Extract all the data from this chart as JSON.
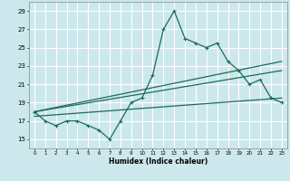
{
  "xlabel": "Humidex (Indice chaleur)",
  "bg_color": "#cce8ec",
  "grid_color": "#ffffff",
  "line_color": "#1a6b5a",
  "xlim": [
    -0.5,
    23.5
  ],
  "ylim": [
    14.0,
    30.0
  ],
  "yticks": [
    15,
    17,
    19,
    21,
    23,
    25,
    27,
    29
  ],
  "xticks": [
    0,
    1,
    2,
    3,
    4,
    5,
    6,
    7,
    8,
    9,
    10,
    11,
    12,
    13,
    14,
    15,
    16,
    17,
    18,
    19,
    20,
    21,
    22,
    23
  ],
  "main_series_x": [
    0,
    1,
    2,
    3,
    4,
    5,
    6,
    7,
    8,
    9,
    10,
    11,
    12,
    13,
    14,
    15,
    16,
    17,
    18,
    19,
    20,
    21,
    22,
    23
  ],
  "main_series_y": [
    18.0,
    17.0,
    16.5,
    17.0,
    17.0,
    16.5,
    16.0,
    15.0,
    17.0,
    19.0,
    19.5,
    22.0,
    27.0,
    29.0,
    26.0,
    25.5,
    25.0,
    25.5,
    23.5,
    22.5,
    21.0,
    21.5,
    19.5,
    19.0
  ],
  "trend_lines": [
    {
      "x": [
        0,
        23
      ],
      "y": [
        18.0,
        23.5
      ]
    },
    {
      "x": [
        0,
        23
      ],
      "y": [
        18.0,
        22.5
      ]
    },
    {
      "x": [
        0,
        23
      ],
      "y": [
        17.5,
        19.5
      ]
    }
  ]
}
